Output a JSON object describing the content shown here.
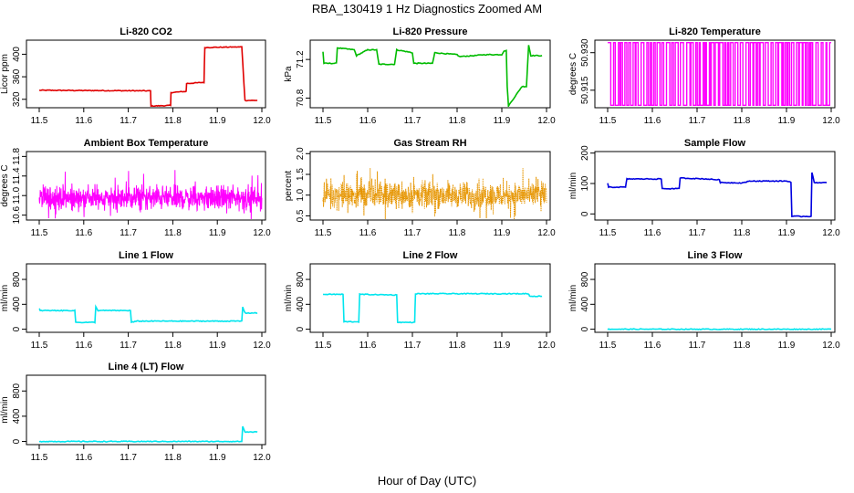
{
  "figure": {
    "title": "RBA_130419  1 Hz Diagnostics Zoomed AM",
    "xlabel": "Hour of Day (UTC)"
  },
  "chart_data": [
    {
      "type": "line",
      "title": "Li-820 CO2",
      "ylabel": "Licor ppm",
      "color": "#e00000",
      "xlim": [
        11.5,
        12.0
      ],
      "ylim": [
        305,
        425
      ],
      "xticks": [
        "11.5",
        "11.6",
        "11.7",
        "11.8",
        "11.9",
        "12.0"
      ],
      "yticks": [
        "320",
        "360",
        "400"
      ],
      "x": [
        11.5,
        11.75,
        11.751,
        11.795,
        11.796,
        11.83,
        11.831,
        11.87,
        11.872,
        11.955,
        11.962,
        11.99
      ],
      "y": [
        336,
        335,
        308,
        309,
        332,
        334,
        348,
        350,
        412,
        413,
        318,
        318
      ]
    },
    {
      "type": "line",
      "title": "Li-820 Pressure",
      "ylabel": "kPa",
      "color": "#00bb00",
      "xlim": [
        11.5,
        12.0
      ],
      "ylim": [
        70.7,
        71.4
      ],
      "xticks": [
        "11.5",
        "11.6",
        "11.7",
        "11.8",
        "11.9",
        "12.0"
      ],
      "yticks": [
        "70.8",
        "71.2"
      ],
      "x": [
        11.5,
        11.502,
        11.53,
        11.532,
        11.57,
        11.575,
        11.6,
        11.62,
        11.625,
        11.66,
        11.665,
        11.7,
        11.703,
        11.745,
        11.75,
        11.8,
        11.805,
        11.84,
        11.86,
        11.9,
        11.905,
        11.91,
        11.912,
        11.915,
        11.945,
        11.955,
        11.96,
        11.965,
        11.99
      ],
      "y": [
        71.28,
        71.16,
        71.16,
        71.32,
        71.3,
        71.24,
        71.3,
        71.3,
        71.15,
        71.15,
        71.3,
        71.27,
        71.16,
        71.16,
        71.27,
        71.25,
        71.23,
        71.24,
        71.25,
        71.25,
        71.29,
        71.29,
        70.92,
        70.72,
        70.92,
        70.92,
        71.35,
        71.24,
        71.24
      ]
    },
    {
      "type": "line",
      "title": "Li-820 Temperature",
      "ylabel": "degrees C",
      "color": "#ff00ff",
      "xlim": [
        11.5,
        12.0
      ],
      "ylim": [
        50.908,
        50.935
      ],
      "xticks": [
        "11.5",
        "11.6",
        "11.7",
        "11.8",
        "11.9",
        "12.0"
      ],
      "yticks": [
        "50.915",
        "50.930"
      ],
      "levels": [
        50.909,
        50.934
      ],
      "note_pattern": "rapid switching between two levels"
    },
    {
      "type": "line",
      "title": "Ambient Box Temperature",
      "ylabel": "degrees C",
      "color": "#ff00ff",
      "xlim": [
        11.5,
        12.0
      ],
      "ylim": [
        10.5,
        11.9
      ],
      "xticks": [
        "11.5",
        "11.6",
        "11.7",
        "11.8",
        "11.9",
        "12.0"
      ],
      "yticks": [
        "10.6",
        "11.0",
        "11.4",
        "11.8"
      ],
      "mean": 10.95,
      "spread": 0.35
    },
    {
      "type": "scatter",
      "title": "Gas Stream RH",
      "ylabel": "percent",
      "color": "#e69500",
      "xlim": [
        11.5,
        12.0
      ],
      "ylim": [
        0.4,
        2.05
      ],
      "xticks": [
        "11.5",
        "11.6",
        "11.7",
        "11.8",
        "11.9",
        "12.0"
      ],
      "yticks": [
        "0.5",
        "1.0",
        "1.5",
        "2.0"
      ],
      "mean": 1.0,
      "spread": 0.45
    },
    {
      "type": "line",
      "title": "Sample Flow",
      "ylabel": "ml/min",
      "color": "#0000e0",
      "xlim": [
        11.5,
        12.0
      ],
      "ylim": [
        -20,
        205
      ],
      "xticks": [
        "11.5",
        "11.6",
        "11.7",
        "11.8",
        "11.9",
        "12.0"
      ],
      "yticks": [
        "0",
        "100",
        "200"
      ],
      "x": [
        11.5,
        11.502,
        11.54,
        11.543,
        11.62,
        11.622,
        11.66,
        11.662,
        11.72,
        11.75,
        11.752,
        11.8,
        11.82,
        11.9,
        11.91,
        11.912,
        11.955,
        11.957,
        11.962,
        11.99
      ],
      "y": [
        100,
        88,
        88,
        115,
        115,
        83,
        83,
        118,
        115,
        112,
        103,
        102,
        108,
        108,
        105,
        -8,
        -8,
        135,
        103,
        103
      ]
    },
    {
      "type": "line",
      "title": "Line 1 Flow",
      "ylabel": "ml/min",
      "color": "#00e5ee",
      "xlim": [
        11.5,
        12.0
      ],
      "ylim": [
        -50,
        1050
      ],
      "xticks": [
        "11.5",
        "11.6",
        "11.7",
        "11.8",
        "11.9",
        "12.0"
      ],
      "yticks": [
        "0",
        "400",
        "800"
      ],
      "x": [
        11.5,
        11.502,
        11.58,
        11.582,
        11.625,
        11.627,
        11.632,
        11.705,
        11.707,
        11.72,
        11.955,
        11.957,
        11.962,
        11.99
      ],
      "y": [
        330,
        300,
        300,
        110,
        110,
        360,
        300,
        300,
        110,
        130,
        130,
        360,
        260,
        260
      ]
    },
    {
      "type": "line",
      "title": "Line 2 Flow",
      "ylabel": "ml/min",
      "color": "#00e5ee",
      "xlim": [
        11.5,
        12.0
      ],
      "ylim": [
        -50,
        1050
      ],
      "xticks": [
        "11.5",
        "11.6",
        "11.7",
        "11.8",
        "11.9",
        "12.0"
      ],
      "yticks": [
        "0",
        "400",
        "800"
      ],
      "x": [
        11.5,
        11.545,
        11.547,
        11.58,
        11.582,
        11.665,
        11.667,
        11.705,
        11.707,
        11.96,
        11.962,
        11.99
      ],
      "y": [
        560,
        560,
        120,
        120,
        560,
        550,
        110,
        110,
        570,
        570,
        530,
        530
      ]
    },
    {
      "type": "line",
      "title": "Line 3 Flow",
      "ylabel": "ml/min",
      "color": "#00e5ee",
      "xlim": [
        11.5,
        12.0
      ],
      "ylim": [
        -50,
        1050
      ],
      "xticks": [
        "11.5",
        "11.6",
        "11.7",
        "11.8",
        "11.9",
        "12.0"
      ],
      "yticks": [
        "0",
        "400",
        "800"
      ],
      "x": [
        11.5,
        12.0
      ],
      "y": [
        0,
        0
      ]
    },
    {
      "type": "line",
      "title": "Line 4 (LT) Flow",
      "ylabel": "ml/min",
      "color": "#00e5ee",
      "xlim": [
        11.5,
        12.0
      ],
      "ylim": [
        -50,
        1050
      ],
      "xticks": [
        "11.5",
        "11.6",
        "11.7",
        "11.8",
        "11.9",
        "12.0"
      ],
      "yticks": [
        "0",
        "400",
        "800"
      ],
      "x": [
        11.5,
        11.955,
        11.957,
        11.962,
        11.99
      ],
      "y": [
        0,
        0,
        240,
        150,
        150
      ]
    }
  ]
}
